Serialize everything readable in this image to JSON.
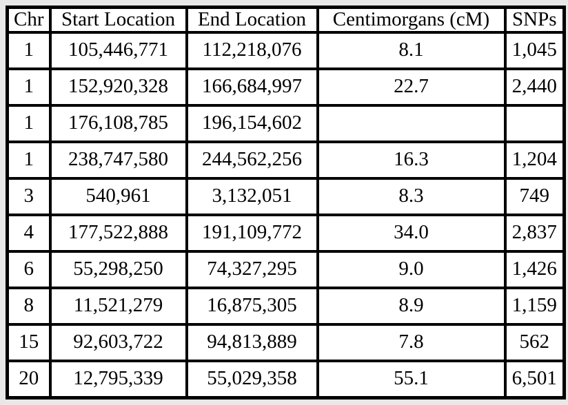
{
  "colors": {
    "page_background": "#e8e8e8",
    "cell_background": "#ffffff",
    "border": "#000000",
    "text": "#000000"
  },
  "chart_data": {
    "type": "table",
    "title": "",
    "columns": [
      "Chr",
      "Start Location",
      "End Location",
      "Centimorgans (cM)",
      "SNPs"
    ],
    "rows": [
      [
        "1",
        "105,446,771",
        "112,218,076",
        "8.1",
        "1,045"
      ],
      [
        "1",
        "152,920,328",
        "166,684,997",
        "22.7",
        "2,440"
      ],
      [
        "1",
        "176,108,785",
        "196,154,602",
        "",
        ""
      ],
      [
        "1",
        "238,747,580",
        "244,562,256",
        "16.3",
        "1,204"
      ],
      [
        "3",
        "540,961",
        "3,132,051",
        "8.3",
        "749"
      ],
      [
        "4",
        "177,522,888",
        "191,109,772",
        "34.0",
        "2,837"
      ],
      [
        "6",
        "55,298,250",
        "74,327,295",
        "9.0",
        "1,426"
      ],
      [
        "8",
        "11,521,279",
        "16,875,305",
        "8.9",
        "1,159"
      ],
      [
        "15",
        "92,603,722",
        "94,813,889",
        "7.8",
        "562"
      ],
      [
        "20",
        "12,795,339",
        "55,029,358",
        "55.1",
        "6,501"
      ]
    ]
  }
}
